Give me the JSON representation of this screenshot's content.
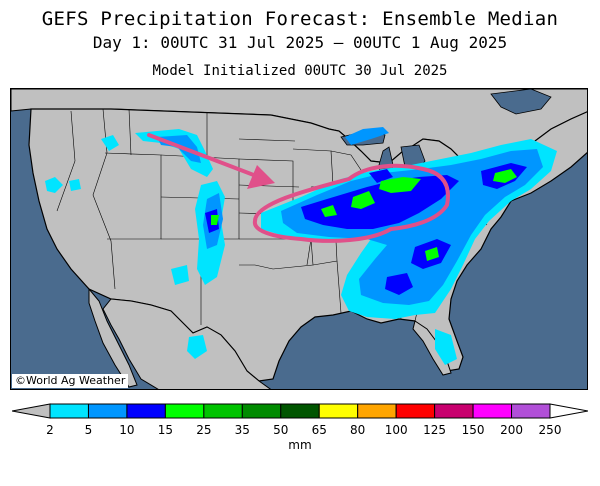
{
  "title": "GEFS Precipitation Forecast: Ensemble Median",
  "subtitle": "Day 1: 00UTC 31 Jul 2025 — 00UTC 1 Aug 2025",
  "initialized": "Model Initialized 00UTC 30 Jul 2025",
  "credit": "©World Ag Weather",
  "units": "mm",
  "colors": {
    "ocean": "#4a6b8e",
    "land": "#c0c0c0",
    "annotation": "#e0508a"
  },
  "legend": {
    "ticks": [
      "2",
      "5",
      "10",
      "15",
      "25",
      "35",
      "50",
      "65",
      "80",
      "100",
      "125",
      "150",
      "200",
      "250"
    ],
    "colors": [
      "#00e4ff",
      "#0096ff",
      "#0000ff",
      "#00ff00",
      "#00c300",
      "#008b00",
      "#005500",
      "#ffff00",
      "#ffa500",
      "#ff0000",
      "#c8006e",
      "#ff00ff",
      "#b14fd8"
    ]
  },
  "annotations": {
    "arrow": "pink-arrow-northwest-to-plains",
    "ellipse": "pink-ellipse-midwest"
  }
}
